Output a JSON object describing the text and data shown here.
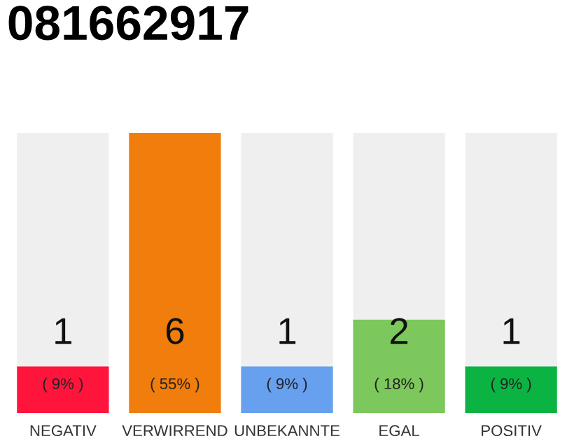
{
  "chart_data": {
    "type": "bar",
    "title": "081662917",
    "categories": [
      "NEGATIV",
      "VERWIRREND",
      "UNBEKANNTE",
      "EGAL",
      "POSITIV"
    ],
    "values": [
      1,
      6,
      1,
      2,
      1
    ],
    "colors": [
      "#ff143c",
      "#f07d0c",
      "#67a0ee",
      "#7cc85c",
      "#0bb442"
    ],
    "data_labels": true,
    "annotations": [
      "( 9% )",
      "( 55% )",
      "( 9% )",
      "( 18% )",
      "( 9% )"
    ],
    "grid": false,
    "legend": false
  }
}
